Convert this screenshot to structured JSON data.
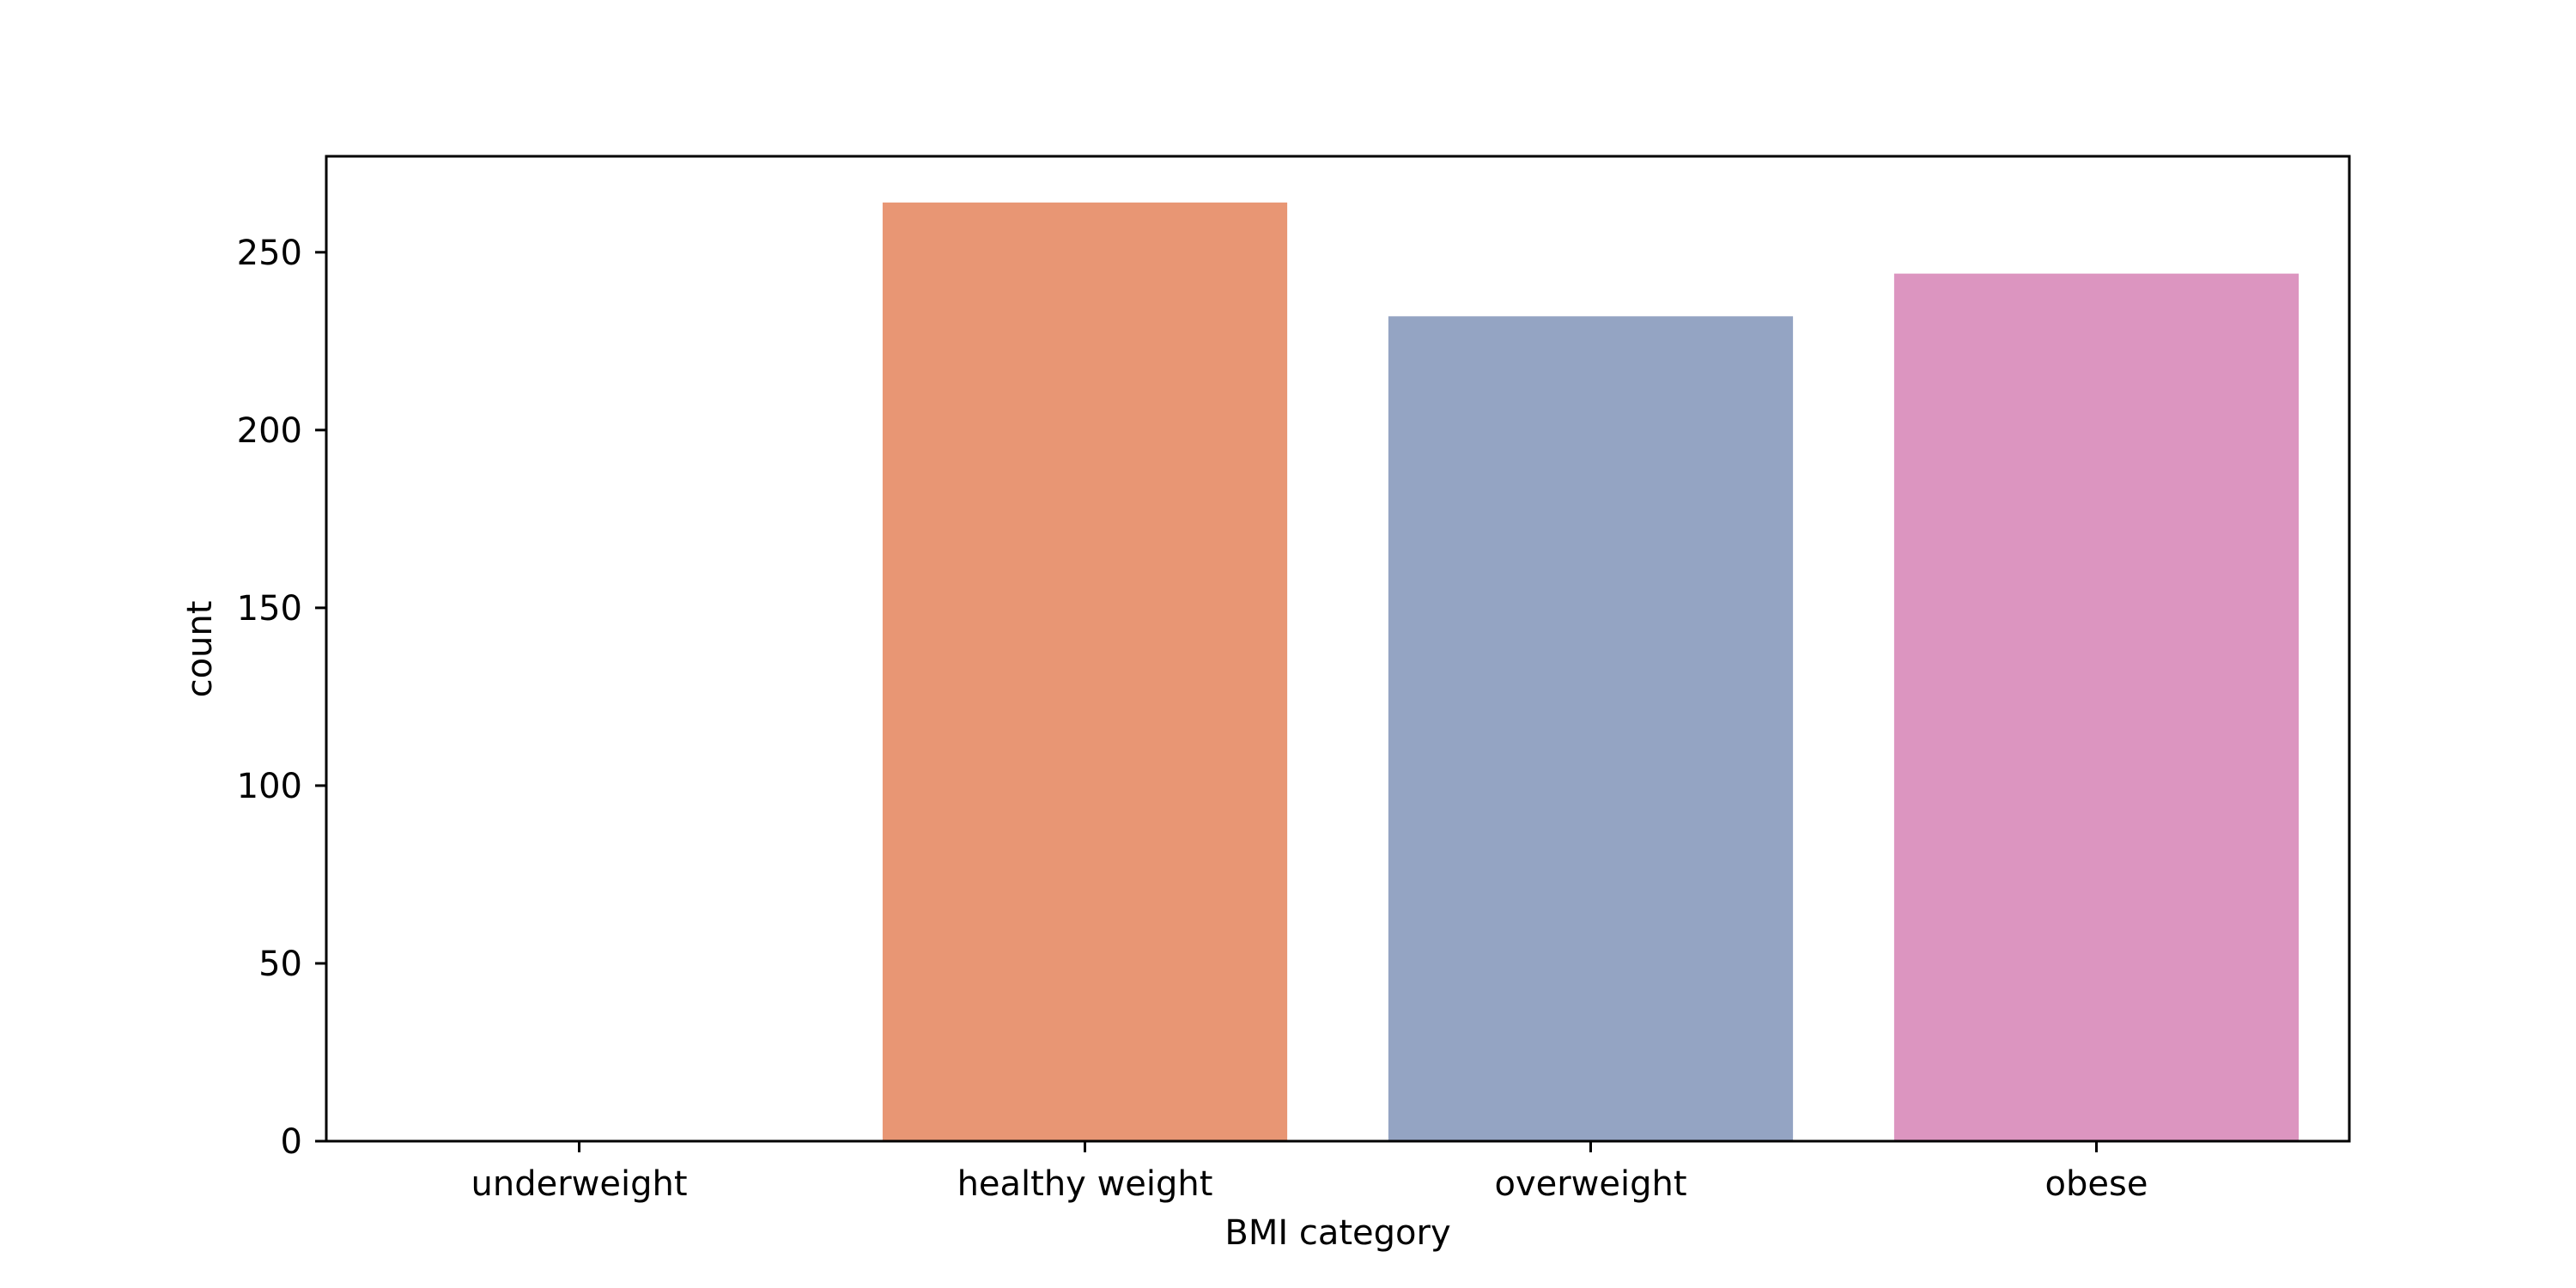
{
  "chart_data": {
    "type": "bar",
    "categories": [
      "underweight",
      "healthy weight",
      "overweight",
      "obese"
    ],
    "values": [
      0,
      264,
      232,
      244
    ],
    "colors": [
      "#66c2a5",
      "#e89674",
      "#94a4c3",
      "#dc95c0"
    ],
    "title": "",
    "xlabel": "BMI category",
    "ylabel": "count",
    "ylim": [
      0,
      277
    ],
    "yticks": [
      0,
      50,
      100,
      150,
      200,
      250
    ],
    "grid": false
  }
}
